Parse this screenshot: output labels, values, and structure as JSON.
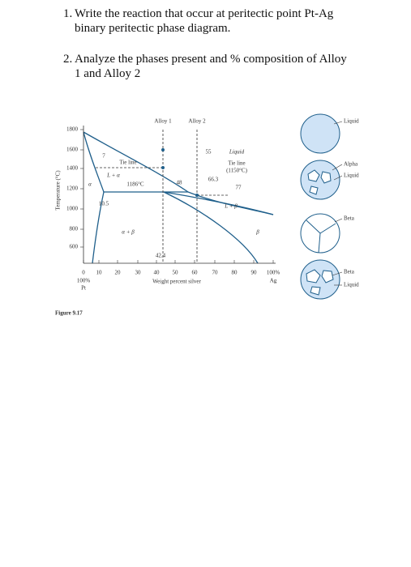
{
  "questions": [
    {
      "number": "1.",
      "lines": [
        "Write the reaction that occur at peritectic point Pt-Ag",
        "binary peritectic phase diagram."
      ]
    },
    {
      "number": "2.",
      "lines": [
        "Analyze the phases present and % composition of Alloy",
        "1 and Alloy 2"
      ]
    }
  ],
  "figure": {
    "y_axis_label": "Temperature (°C)",
    "y_tick_labels": [
      "1800",
      "1600",
      "1400",
      "1200",
      "1000",
      "800",
      "600"
    ],
    "x_tick_labels": [
      "0",
      "10",
      "20",
      "30",
      "40",
      "50",
      "60",
      "70",
      "80",
      "90",
      "100%"
    ],
    "x_axis_label": "Weight percent silver",
    "x_left_labels": [
      "100%",
      "Pt"
    ],
    "x_right_label": "Ag",
    "alloy_labels": [
      "Alloy 1",
      "Alloy 2"
    ],
    "region_labels": [
      "Liquid",
      "L + α",
      "α",
      "α + β",
      "L + β",
      "β"
    ],
    "tie_line_labels": [
      "Tie line",
      "Tie line",
      "(1150°C)"
    ],
    "point_labels": [
      "7",
      "10.5",
      "1186°C",
      "55",
      "48",
      "66.3",
      "77",
      "42.4"
    ],
    "microstructures": [
      {
        "labels": [
          "Liquid"
        ]
      },
      {
        "labels": [
          "Alpha",
          "Liquid"
        ]
      },
      {
        "labels": [
          "Beta"
        ]
      },
      {
        "labels": [
          "Beta",
          "Liquid"
        ]
      }
    ],
    "caption": "Figure 9.17"
  }
}
